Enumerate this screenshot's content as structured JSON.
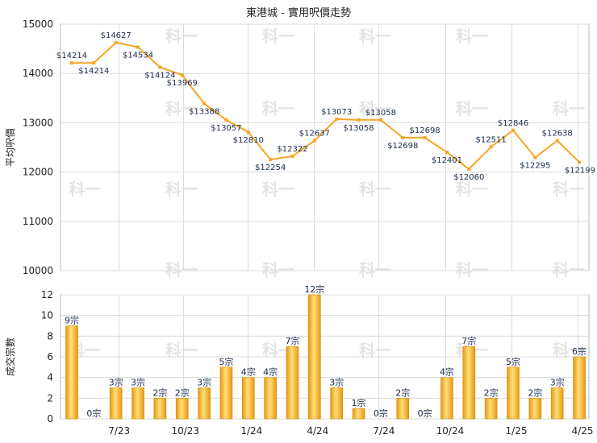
{
  "chart_data": [
    {
      "type": "line",
      "title": "東港城 - 實用呎價走勢",
      "ylabel": "平均呎價",
      "ylim": [
        10000,
        15000
      ],
      "yticks": [
        10000,
        11000,
        12000,
        13000,
        14000,
        15000
      ],
      "x_tick_labels": [
        "7/23",
        "10/23",
        "1/24",
        "4/24",
        "7/24",
        "10/24",
        "1/25",
        "4/25"
      ],
      "grid": true,
      "color": "#f5a623",
      "values": [
        14214,
        14214,
        14627,
        14534,
        14124,
        13969,
        13388,
        13057,
        12810,
        12254,
        12322,
        12637,
        13073,
        13058,
        13058,
        12698,
        12698,
        12401,
        12060,
        12511,
        12846,
        12295,
        12638,
        12199
      ],
      "labels": [
        "$14214",
        "$14214",
        "$14627",
        "$14534",
        "$14124",
        "$13969",
        "$13388",
        "$13057",
        "$12810",
        "$12254",
        "$12322",
        "$12637",
        "$13073",
        "$13058",
        "$13058",
        "$12698",
        "$12698",
        "$12401",
        "$12060",
        "$12511",
        "$12846",
        "$12295",
        "$12638",
        "$12199"
      ]
    },
    {
      "type": "bar",
      "ylabel": "成交宗數",
      "ylim": [
        0,
        12
      ],
      "yticks": [
        0,
        2,
        4,
        6,
        8,
        10,
        12
      ],
      "x_tick_labels": [
        "7/23",
        "10/23",
        "1/24",
        "4/24",
        "7/24",
        "10/24",
        "1/25",
        "4/25"
      ],
      "grid": true,
      "color": "#f5a623",
      "values": [
        9,
        0,
        3,
        3,
        2,
        2,
        3,
        5,
        4,
        4,
        7,
        12,
        3,
        1,
        0,
        2,
        0,
        4,
        7,
        2,
        5,
        2,
        3,
        6
      ],
      "labels": [
        "9宗",
        "0宗",
        "3宗",
        "3宗",
        "2宗",
        "2宗",
        "3宗",
        "5宗",
        "4宗",
        "4宗",
        "7宗",
        "12宗",
        "3宗",
        "1宗",
        "0宗",
        "2宗",
        "0宗",
        "4宗",
        "7宗",
        "2宗",
        "5宗",
        "2宗",
        "3宗",
        "6宗"
      ]
    }
  ],
  "watermark": "科一"
}
